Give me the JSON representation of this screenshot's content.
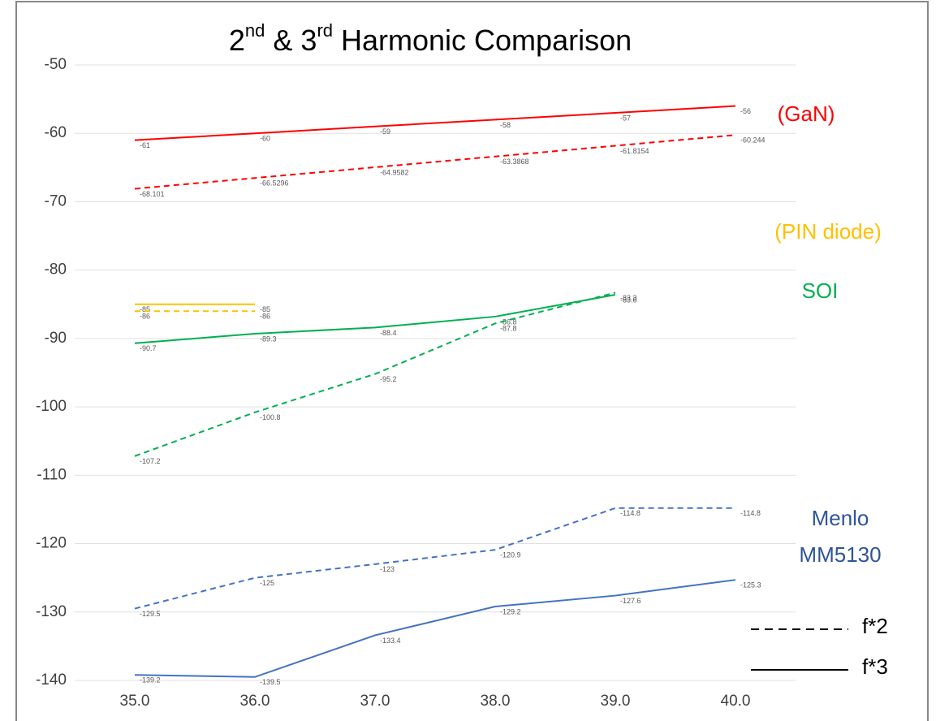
{
  "chart_data": {
    "type": "line",
    "title_parts": [
      {
        "text": "2",
        "sup": false
      },
      {
        "text": "nd",
        "sup": true
      },
      {
        "text": " & 3",
        "sup": false
      },
      {
        "text": "rd",
        "sup": true
      },
      {
        "text": " Harmonic Comparison",
        "sup": false
      }
    ],
    "categories": [
      "35.0",
      "36.0",
      "37.0",
      "38.0",
      "39.0",
      "40.0"
    ],
    "ylim": [
      -140,
      -50
    ],
    "yticks": [
      -140,
      -130,
      -120,
      -110,
      -100,
      -90,
      -80,
      -70,
      -60,
      -50
    ],
    "grid": true,
    "series": [
      {
        "color": "#ff0000",
        "dashed": false,
        "values": [
          -61,
          -60,
          -59,
          -58,
          -57,
          -56
        ]
      },
      {
        "color": "#ff0000",
        "dashed": true,
        "values": [
          -68.101,
          -66.5296,
          -64.9582,
          -63.3868,
          -61.8154,
          -60.244
        ]
      },
      {
        "color": "#ffc000",
        "dashed": false,
        "values": [
          -85,
          -85,
          null,
          null,
          null,
          null
        ]
      },
      {
        "color": "#ffc000",
        "dashed": true,
        "values": [
          -86,
          -86,
          null,
          null,
          null,
          null
        ]
      },
      {
        "color": "#00b050",
        "dashed": false,
        "values": [
          -90.7,
          -89.3,
          -88.4,
          -86.8,
          -83.6,
          null
        ]
      },
      {
        "color": "#00b050",
        "dashed": true,
        "values": [
          -107.2,
          -100.8,
          -95.2,
          -87.8,
          -83.3,
          null
        ]
      },
      {
        "color": "#4472c4",
        "dashed": true,
        "values": [
          -129.5,
          -125,
          -123,
          -120.9,
          -114.8,
          -114.8
        ]
      },
      {
        "color": "#4472c4",
        "dashed": false,
        "values": [
          -139.2,
          -139.5,
          -133.4,
          -129.2,
          -127.6,
          -125.3
        ]
      }
    ],
    "annotations": [
      {
        "lines": [
          "(GaN)"
        ],
        "color": "#ff0000"
      },
      {
        "lines": [
          "(PIN diode)"
        ],
        "color": "#ffc000"
      },
      {
        "lines": [
          "SOI"
        ],
        "color": "#00b050"
      },
      {
        "lines": [
          "Menlo",
          "MM5130"
        ],
        "color": "#2f5597"
      }
    ],
    "legend": [
      {
        "label": "f*2",
        "dashed": true
      },
      {
        "label": "f*3",
        "dashed": false
      }
    ]
  }
}
